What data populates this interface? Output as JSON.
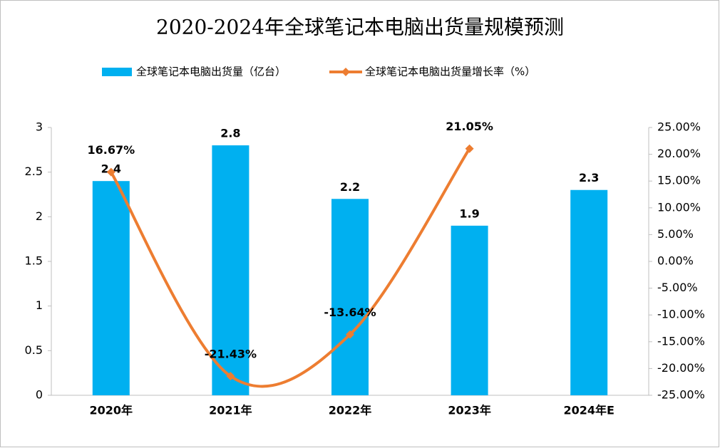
{
  "chart_data": {
    "type": "bar_line",
    "title": "2020-2024年全球笔记本电脑出货量规模预测",
    "categories": [
      "2020年",
      "2021年",
      "2022年",
      "2023年",
      "2024年E"
    ],
    "series": [
      {
        "name": "全球笔记本电脑出货量（亿台）",
        "type": "bar",
        "color": "#00b0f0",
        "values": [
          2.4,
          2.8,
          2.2,
          1.9,
          2.3
        ]
      },
      {
        "name": "全球笔记本电脑出货量增长率（%）",
        "type": "line",
        "axis": "y2",
        "color": "#ed7d31",
        "values": [
          16.67,
          -21.43,
          -13.64,
          21.05,
          null
        ],
        "value_labels": [
          "16.67%",
          "-21.43%",
          "-13.64%",
          "21.05%",
          null
        ]
      }
    ],
    "ylim": [
      0,
      3
    ],
    "yticks": [
      0,
      0.5,
      1,
      1.5,
      2,
      2.5,
      3
    ],
    "y2lim": [
      -25,
      25
    ],
    "y2ticks": [
      {
        "value": -25,
        "label": "-25.00%"
      },
      {
        "value": -20,
        "label": "-20.00%"
      },
      {
        "value": -15,
        "label": "-15.00%"
      },
      {
        "value": -10,
        "label": "-10.00%"
      },
      {
        "value": -5,
        "label": "-5.00%"
      },
      {
        "value": 0,
        "label": "0.00%"
      },
      {
        "value": 5,
        "label": "5.00%"
      },
      {
        "value": 10,
        "label": "10.00%"
      },
      {
        "value": 15,
        "label": "15.00%"
      },
      {
        "value": 20,
        "label": "20.00%"
      },
      {
        "value": 25,
        "label": "25.00%"
      }
    ],
    "legend": "top",
    "grid": false
  }
}
